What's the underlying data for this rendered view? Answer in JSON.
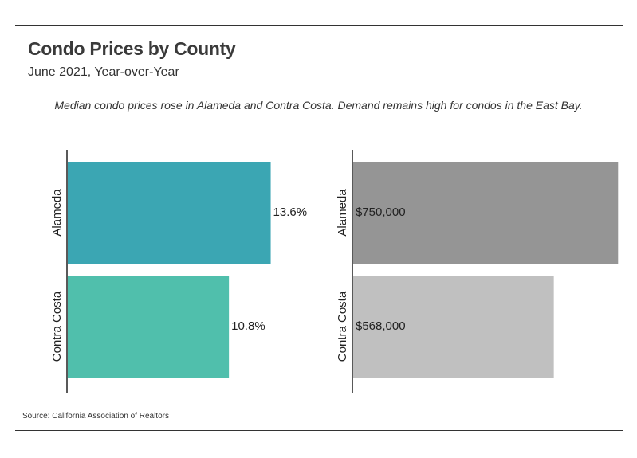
{
  "title": "Condo Prices by County",
  "subtitle": "June 2021, Year-over-Year",
  "annotation": "Median condo prices rose in Alameda and Contra Costa. Demand remains high for condos in the East Bay.",
  "source": "Source:  California Association of Realtors",
  "chart_data": [
    {
      "type": "bar",
      "orientation": "horizontal",
      "categories": [
        "Alameda",
        "Contra Costa"
      ],
      "values": [
        13.6,
        10.8
      ],
      "labels": [
        "13.6%",
        "10.8%"
      ],
      "colors": [
        "#3ba6b3",
        "#50bfac"
      ],
      "xlim": [
        0,
        18.7
      ],
      "grid": false,
      "label_position": "outside-end"
    },
    {
      "type": "bar",
      "orientation": "horizontal",
      "categories": [
        "Alameda",
        "Contra Costa"
      ],
      "values": [
        750000,
        568000
      ],
      "labels": [
        "$750,000",
        "$568,000"
      ],
      "colors": [
        "#959595",
        "#c0c0c0"
      ],
      "xlim": [
        0,
        790000
      ],
      "grid": false,
      "label_position": "inside-start"
    }
  ]
}
